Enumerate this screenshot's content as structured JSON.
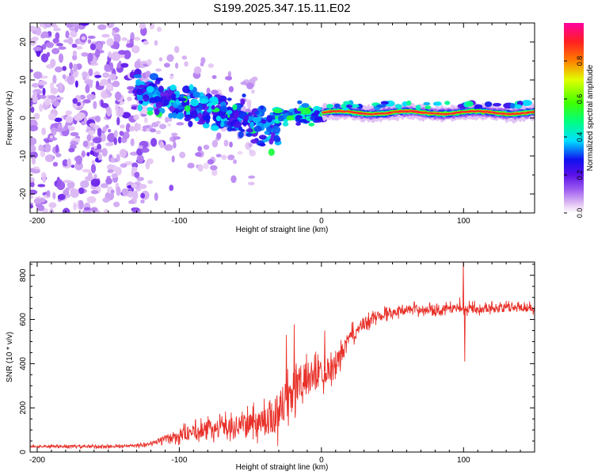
{
  "title": "S199.2025.347.15.11.E02",
  "colors": {
    "snr_line": "#e8312a",
    "axis": "#000000",
    "background": "#ffffff"
  },
  "chart_data": [
    {
      "type": "heatmap",
      "title": "S199.2025.347.15.11.E02",
      "xlabel": "Height of straight line (km)",
      "ylabel": "Frequency (Hz)",
      "xlim": [
        -205,
        150
      ],
      "ylim": [
        -25,
        25
      ],
      "x_ticks": [
        -200,
        -100,
        0,
        100
      ],
      "y_ticks": [
        -20,
        -10,
        0,
        10,
        20
      ],
      "colorbar": {
        "label": "Normalized spectral amplitude",
        "range": [
          0,
          1
        ],
        "ticks": [
          0.0,
          0.2,
          0.4,
          0.6,
          0.8
        ],
        "stops": [
          {
            "value": 0.0,
            "color": "#ffffff"
          },
          {
            "value": 0.04,
            "color": "#e8ccf4"
          },
          {
            "value": 0.12,
            "color": "#a060f0"
          },
          {
            "value": 0.2,
            "color": "#5a10e8"
          },
          {
            "value": 0.28,
            "color": "#1010f0"
          },
          {
            "value": 0.38,
            "color": "#00e0ff"
          },
          {
            "value": 0.48,
            "color": "#00ff80"
          },
          {
            "value": 0.58,
            "color": "#40ff00"
          },
          {
            "value": 0.7,
            "color": "#e0ff00"
          },
          {
            "value": 0.8,
            "color": "#ff8000"
          },
          {
            "value": 0.9,
            "color": "#ff2020"
          },
          {
            "value": 1.0,
            "color": "#ff00a0"
          }
        ]
      },
      "regions": [
        {
          "name": "scattered noise",
          "x_range": [
            -205,
            -125
          ],
          "freq_range": [
            -25,
            25
          ],
          "amplitude": 0.15
        },
        {
          "name": "descending arc",
          "x_range": [
            -130,
            -30
          ],
          "freq_center_start": 7,
          "freq_center_end": -4,
          "amplitude": 0.32
        },
        {
          "name": "transition",
          "x_range": [
            -30,
            2
          ],
          "freq_center": 1,
          "amplitude": 0.45
        },
        {
          "name": "steady tone",
          "x_range": [
            2,
            150
          ],
          "freq_center": 1.5,
          "amplitude": 0.9
        }
      ]
    },
    {
      "type": "line",
      "xlabel": "Height of straight line (km)",
      "ylabel": "SNR (10 * v/v)",
      "xlim": [
        -205,
        150
      ],
      "ylim": [
        0,
        860
      ],
      "x_ticks": [
        -200,
        -100,
        0,
        100
      ],
      "y_ticks": [
        0,
        200,
        400,
        600,
        800
      ],
      "series": [
        {
          "name": "SNR",
          "x_step": 0.25,
          "trend": [
            {
              "x": -205,
              "y": 25
            },
            {
              "x": -150,
              "y": 25
            },
            {
              "x": -125,
              "y": 30
            },
            {
              "x": -110,
              "y": 60
            },
            {
              "x": -80,
              "y": 105
            },
            {
              "x": -60,
              "y": 120
            },
            {
              "x": -40,
              "y": 145
            },
            {
              "x": -30,
              "y": 190
            },
            {
              "x": -22,
              "y": 260
            },
            {
              "x": -18,
              "y": 300
            },
            {
              "x": -10,
              "y": 330
            },
            {
              "x": 0,
              "y": 360
            },
            {
              "x": 10,
              "y": 390
            },
            {
              "x": 20,
              "y": 520
            },
            {
              "x": 30,
              "y": 580
            },
            {
              "x": 40,
              "y": 620
            },
            {
              "x": 60,
              "y": 645
            },
            {
              "x": 100,
              "y": 650
            },
            {
              "x": 150,
              "y": 655
            }
          ],
          "noise_amplitude": [
            {
              "x": -205,
              "y": 8
            },
            {
              "x": -120,
              "y": 12
            },
            {
              "x": -100,
              "y": 50
            },
            {
              "x": -50,
              "y": 80
            },
            {
              "x": -30,
              "y": 170
            },
            {
              "x": -15,
              "y": 150
            },
            {
              "x": 0,
              "y": 110
            },
            {
              "x": 20,
              "y": 60
            },
            {
              "x": 50,
              "y": 35
            },
            {
              "x": 150,
              "y": 35
            }
          ],
          "spikes": [
            {
              "x": -19.5,
              "y": 578
            },
            {
              "x": -25,
              "y": 530
            },
            {
              "x": 2,
              "y": 550
            },
            {
              "x": 97,
              "y": 700
            },
            {
              "x": 99.5,
              "y": 860
            },
            {
              "x": 100.5,
              "y": 410
            }
          ]
        }
      ]
    }
  ]
}
